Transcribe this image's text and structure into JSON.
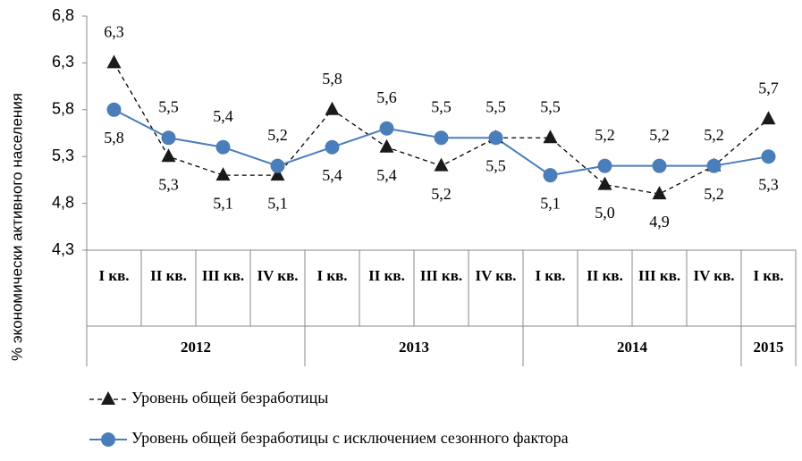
{
  "chart_data": {
    "type": "line",
    "y_axis_label": "% экономически активного населения",
    "categories": [
      "I кв.",
      "II кв.",
      "III кв.",
      "IV кв.",
      "I кв.",
      "II кв.",
      "III кв.",
      "IV кв.",
      "I кв.",
      "II кв.",
      "III кв.",
      "IV кв.",
      "I кв."
    ],
    "years": [
      "2012",
      null,
      null,
      null,
      "2013",
      null,
      null,
      null,
      "2014",
      null,
      null,
      null,
      "2015"
    ],
    "ylim": [
      4.3,
      6.8
    ],
    "yticks": [
      {
        "value": 4.3,
        "label": "4,3"
      },
      {
        "value": 4.8,
        "label": "4,8"
      },
      {
        "value": 5.3,
        "label": "5,3"
      },
      {
        "value": 5.8,
        "label": "5,8"
      },
      {
        "value": 6.3,
        "label": "6,3"
      },
      {
        "value": 6.8,
        "label": "6,8"
      }
    ],
    "series": [
      {
        "name": "Уровень общей безработицы",
        "color": "#000000",
        "marker": "triangle",
        "dashed": true,
        "values": [
          6.3,
          5.3,
          5.1,
          5.1,
          5.8,
          5.4,
          5.2,
          5.5,
          5.5,
          5.0,
          4.9,
          5.2,
          5.7
        ],
        "value_labels": [
          "6,3",
          "5,3",
          "5,1",
          "5,1",
          "5,8",
          "5,4",
          "5,2",
          "5,5",
          "5,5",
          "5,0",
          "4,9",
          "5,2",
          "5,7"
        ]
      },
      {
        "name": "Уровень общей безработицы с исключением сезонного фактора",
        "color": "#4a7ebb",
        "marker": "circle",
        "dashed": false,
        "values": [
          5.8,
          5.5,
          5.4,
          5.2,
          5.4,
          5.6,
          5.5,
          5.5,
          5.1,
          5.2,
          5.2,
          5.2,
          5.3
        ],
        "value_labels": [
          "5,8",
          "5,5",
          "5,4",
          "5,2",
          "5,4",
          "5,6",
          "5,5",
          "5,5",
          "5,1",
          "5,2",
          "5,2",
          "5,2",
          "5,3"
        ]
      }
    ]
  }
}
